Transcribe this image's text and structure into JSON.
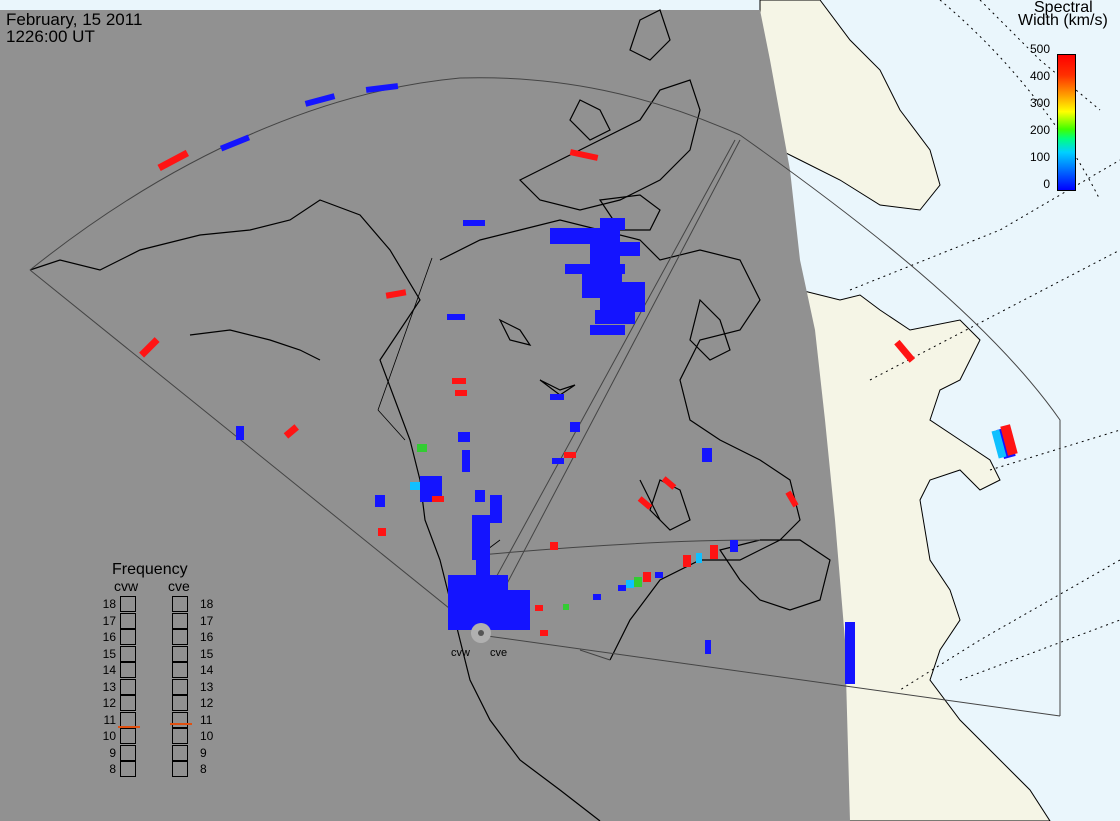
{
  "header": {
    "date": "February, 15 2011",
    "time": "1226:00 UT"
  },
  "colorbar": {
    "title_line1": "Spectral",
    "title_line2": "Width (km/s)",
    "ticks": [
      "500",
      "400",
      "300",
      "200",
      "100",
      "0"
    ]
  },
  "frequency_panel": {
    "title": "Frequency",
    "radars": [
      "cvw",
      "cve"
    ],
    "scale": [
      "18",
      "17",
      "16",
      "15",
      "14",
      "13",
      "12",
      "11",
      "10",
      "9",
      "8"
    ],
    "current": [
      10.6,
      10.8
    ]
  },
  "sites": {
    "west": "cvw",
    "east": "cve"
  },
  "colors": {
    "night": "#919191",
    "day_land": "#f5f5e6",
    "ocean": "#eaf6fc",
    "blue": "#1414ff",
    "red": "#ff1414",
    "green": "#33cc33",
    "cyan": "#10c0ff"
  }
}
